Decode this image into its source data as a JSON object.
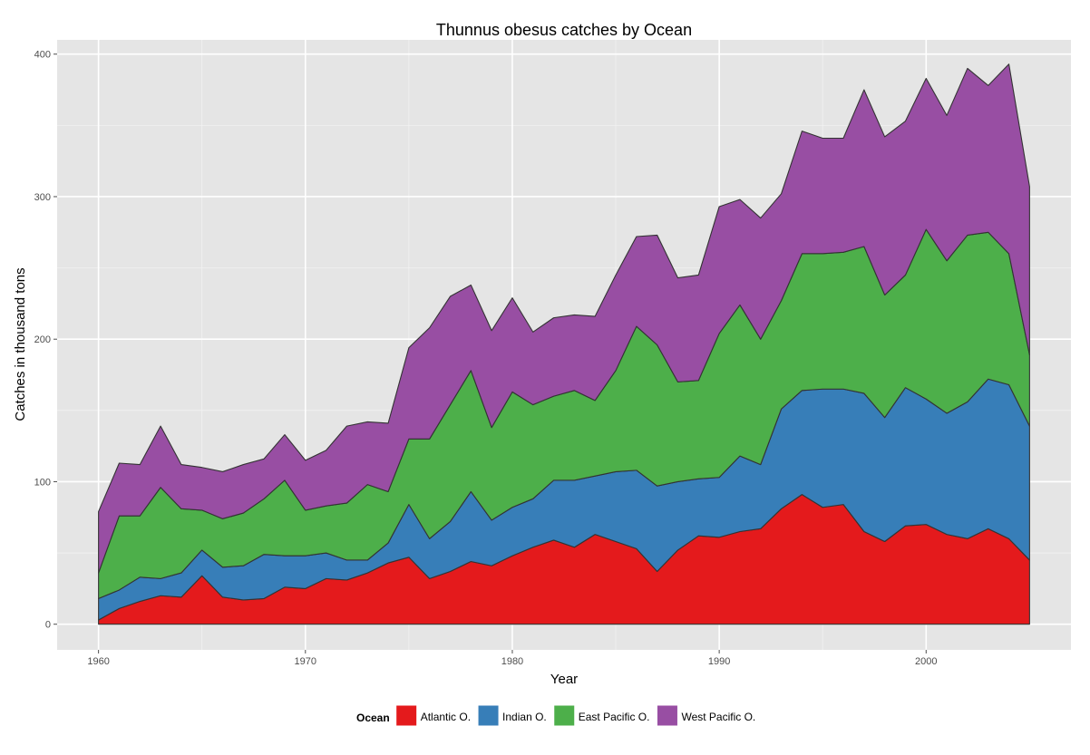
{
  "chart_data": {
    "type": "area",
    "stacked": true,
    "title": "Thunnus obesus catches by Ocean",
    "xlabel": "Year",
    "ylabel": "Catches in thousand tons",
    "xlim": [
      1958,
      2007
    ],
    "ylim": [
      -18,
      410
    ],
    "x_ticks": [
      1960,
      1970,
      1980,
      1990,
      2000
    ],
    "y_ticks": [
      0,
      100,
      200,
      300,
      400
    ],
    "grid": true,
    "legend_position": "bottom",
    "legend_title": "Ocean",
    "x": [
      1960,
      1961,
      1962,
      1963,
      1964,
      1965,
      1966,
      1967,
      1968,
      1969,
      1970,
      1971,
      1972,
      1973,
      1974,
      1975,
      1976,
      1977,
      1978,
      1979,
      1980,
      1981,
      1982,
      1983,
      1984,
      1985,
      1986,
      1987,
      1988,
      1989,
      1990,
      1991,
      1992,
      1993,
      1994,
      1995,
      1996,
      1997,
      1998,
      1999,
      2000,
      2001,
      2002,
      2003,
      2004,
      2005
    ],
    "series": [
      {
        "name": "Atlantic O.",
        "color": "#e41a1c",
        "values": [
          3,
          11,
          16,
          20,
          19,
          34,
          19,
          17,
          18,
          26,
          25,
          32,
          31,
          36,
          43,
          47,
          32,
          37,
          44,
          41,
          48,
          54,
          59,
          54,
          63,
          58,
          53,
          37,
          52,
          62,
          61,
          65,
          67,
          81,
          91,
          82,
          84,
          65,
          58,
          69,
          70,
          63,
          60,
          67,
          60,
          45
        ]
      },
      {
        "name": "Indian O.",
        "color": "#377eb8",
        "values": [
          15,
          13,
          17,
          12,
          17,
          18,
          21,
          24,
          31,
          22,
          23,
          18,
          14,
          9,
          14,
          37,
          28,
          35,
          49,
          32,
          34,
          34,
          42,
          47,
          41,
          49,
          55,
          60,
          48,
          40,
          42,
          53,
          45,
          70,
          73,
          83,
          81,
          97,
          87,
          97,
          88,
          85,
          96,
          105,
          108,
          94
        ]
      },
      {
        "name": "East Pacific O.",
        "color": "#4daf4a",
        "values": [
          18,
          52,
          43,
          64,
          45,
          28,
          34,
          37,
          39,
          53,
          32,
          33,
          40,
          53,
          36,
          46,
          70,
          82,
          85,
          65,
          81,
          66,
          59,
          63,
          53,
          71,
          101,
          99,
          70,
          69,
          101,
          106,
          88,
          76,
          96,
          95,
          96,
          103,
          86,
          79,
          119,
          107,
          117,
          103,
          92,
          50
        ]
      },
      {
        "name": "West Pacific O.",
        "color": "#984ea3",
        "values": [
          43,
          37,
          36,
          43,
          31,
          30,
          33,
          34,
          28,
          32,
          35,
          39,
          54,
          44,
          48,
          64,
          78,
          76,
          60,
          68,
          66,
          51,
          55,
          53,
          59,
          67,
          63,
          77,
          73,
          74,
          89,
          74,
          85,
          75,
          86,
          81,
          80,
          110,
          111,
          108,
          106,
          102,
          117,
          103,
          133,
          118
        ]
      }
    ]
  }
}
